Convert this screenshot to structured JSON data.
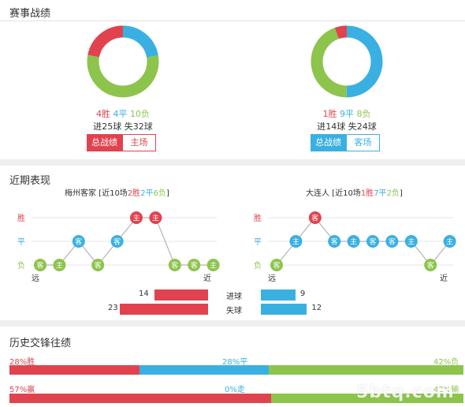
{
  "colors": {
    "win": "#e0434e",
    "draw": "#3ab0e2",
    "loss": "#8dc44c"
  },
  "section1": {
    "title": "赛事战绩",
    "left": {
      "record": {
        "win": "4胜",
        "draw": "4平",
        "loss": "10负"
      },
      "goals": "进25球 失32球",
      "tabs": [
        "总战绩",
        "主场"
      ],
      "donut_fractions": {
        "win": 0.222,
        "draw": 0.222,
        "loss": 0.556
      }
    },
    "right": {
      "record": {
        "win": "1胜",
        "draw": "9平",
        "loss": "8负"
      },
      "goals": "进14球 失24球",
      "tabs": [
        "总战绩",
        "客场"
      ],
      "donut_fractions": {
        "win": 0.056,
        "draw": 0.5,
        "loss": 0.444
      }
    }
  },
  "section2": {
    "title": "近期表现",
    "left": {
      "team": "梅州客家",
      "summary_prefix": " [近10场",
      "wins": "2胜",
      "draws": "2平",
      "losses": "6负",
      "summary_suffix": "]",
      "y_labels": [
        "胜",
        "平",
        "负"
      ],
      "x_labels": [
        "远",
        "近"
      ],
      "results": [
        {
          "r": "L",
          "v": "客"
        },
        {
          "r": "L",
          "v": "主"
        },
        {
          "r": "D",
          "v": "客"
        },
        {
          "r": "L",
          "v": "客"
        },
        {
          "r": "D",
          "v": "客"
        },
        {
          "r": "W",
          "v": "主"
        },
        {
          "r": "W",
          "v": "主"
        },
        {
          "r": "L",
          "v": "客"
        },
        {
          "r": "L",
          "v": "客"
        },
        {
          "r": "L",
          "v": "主"
        }
      ]
    },
    "right": {
      "team": "大连人",
      "summary_prefix": " [近10场",
      "wins": "1胜",
      "draws": "7平",
      "losses": "2负",
      "summary_suffix": "]",
      "y_labels": [
        "胜",
        "平",
        "负"
      ],
      "x_labels": [
        "远",
        "近"
      ],
      "results": [
        {
          "r": "L",
          "v": "客"
        },
        {
          "r": "D",
          "v": "主"
        },
        {
          "r": "W",
          "v": "客"
        },
        {
          "r": "D",
          "v": "客"
        },
        {
          "r": "D",
          "v": "主"
        },
        {
          "r": "D",
          "v": "客"
        },
        {
          "r": "D",
          "v": "客"
        },
        {
          "r": "D",
          "v": "主"
        },
        {
          "r": "L",
          "v": "客"
        },
        {
          "r": "D",
          "v": "主"
        }
      ]
    },
    "goals": {
      "scored_label": "进球",
      "conceded_label": "失球",
      "left_scored": 14,
      "left_conceded": 23,
      "right_scored": 9,
      "right_conceded": 12
    }
  },
  "section3": {
    "title": "历史交锋往绩",
    "row1": {
      "left": "28%胜",
      "mid": "28%平",
      "right": "42%负",
      "fractions": [
        0.28,
        0.28,
        0.42
      ]
    },
    "row2": {
      "left": "57%赢",
      "mid": "0%走",
      "right": "42%输",
      "fractions": [
        0.57,
        0.0,
        0.42
      ]
    }
  },
  "watermark": "5btq.com"
}
